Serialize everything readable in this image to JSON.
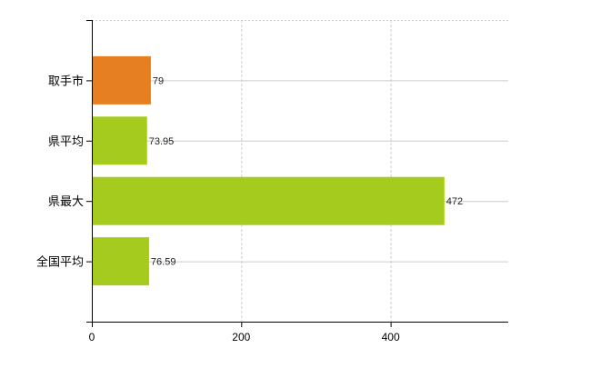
{
  "chart_data": {
    "type": "bar",
    "orientation": "horizontal",
    "categories": [
      "取手市",
      "県平均",
      "県最大",
      "全国平均"
    ],
    "values": [
      79,
      73.95,
      472,
      76.59
    ],
    "value_labels": [
      "79",
      "73.95",
      "472",
      "76.59"
    ],
    "bar_colors": [
      "#e67e22",
      "#a6cb1f",
      "#a6cb1f",
      "#a6cb1f"
    ],
    "xlim": [
      0,
      566
    ],
    "x_ticks": [
      0,
      200,
      400
    ],
    "x_tick_labels": [
      "0",
      "200",
      "400"
    ],
    "grid": true,
    "legend": "none",
    "title": "",
    "xlabel": "",
    "ylabel": ""
  }
}
